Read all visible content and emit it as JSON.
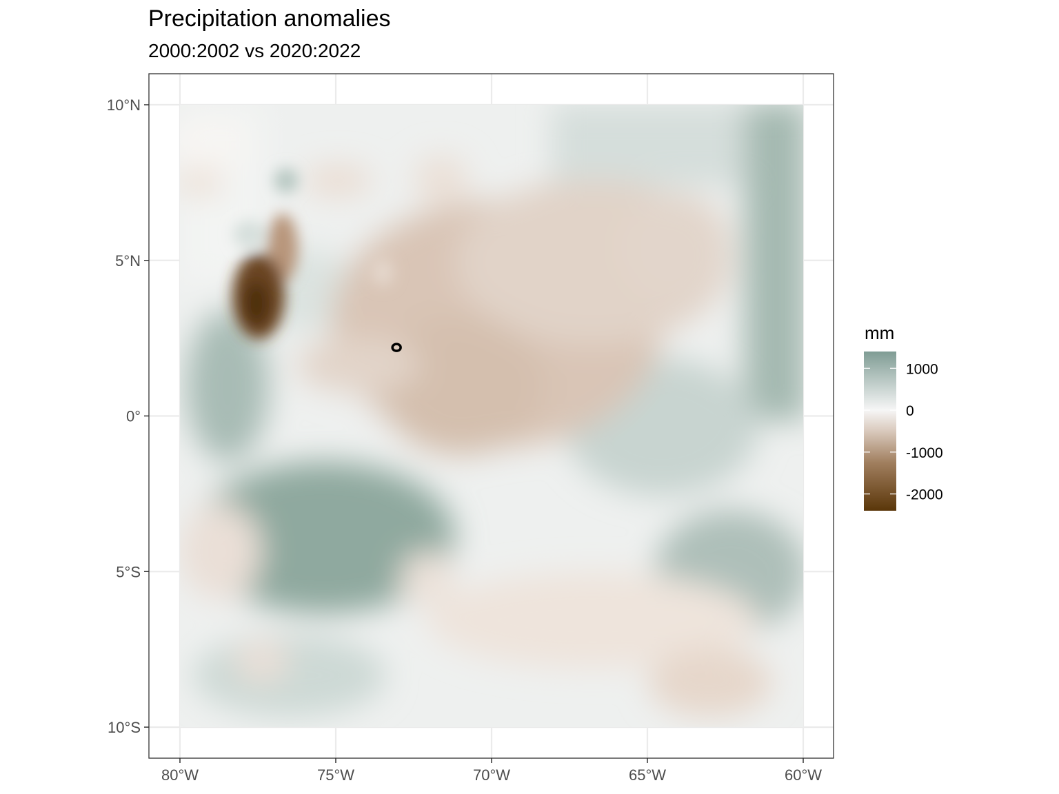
{
  "title": "Precipitation anomalies",
  "subtitle": "2000:2002 vs 2020:2022",
  "map": {
    "x_ticks": [
      {
        "value": -80,
        "label": "80°W"
      },
      {
        "value": -75,
        "label": "75°W"
      },
      {
        "value": -70,
        "label": "70°W"
      },
      {
        "value": -65,
        "label": "65°W"
      },
      {
        "value": -60,
        "label": "60°W"
      }
    ],
    "y_ticks": [
      {
        "value": 10,
        "label": "10°N"
      },
      {
        "value": 5,
        "label": "5°N"
      },
      {
        "value": 0,
        "label": "0°"
      },
      {
        "value": -5,
        "label": "5°S"
      },
      {
        "value": -10,
        "label": "10°S"
      }
    ],
    "lon_range": [
      -80,
      -60
    ],
    "lat_range": [
      -10,
      10
    ],
    "point_marker": {
      "lon": -73.05,
      "lat": 2.2
    }
  },
  "legend": {
    "title": "mm",
    "breaks": [
      {
        "value": 1000,
        "label": "1000"
      },
      {
        "value": 0,
        "label": "0"
      },
      {
        "value": -1000,
        "label": "-1000"
      },
      {
        "value": -2000,
        "label": "-2000"
      }
    ],
    "range": [
      -2400,
      1400
    ],
    "colors": {
      "high": "#7f9c94",
      "mid": "#f6f6f6",
      "low": "#5a3609"
    }
  }
}
